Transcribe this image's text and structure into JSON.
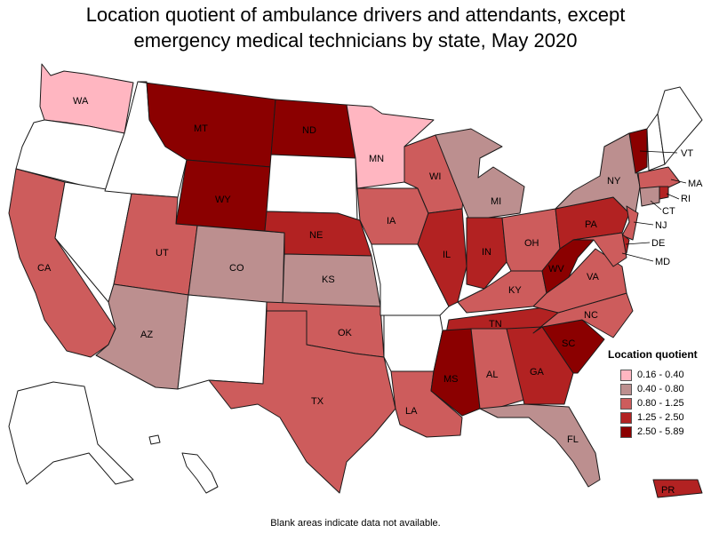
{
  "title_line1": "Location quotient of ambulance drivers and attendants, except",
  "title_line2": "emergency medical technicians by state, May 2020",
  "legend": {
    "title": "Location quotient",
    "items": [
      {
        "label": "0.16 - 0.40",
        "color": "#ffb6c1"
      },
      {
        "label": "0.40 - 0.80",
        "color": "#bc8f8f"
      },
      {
        "label": "0.80 - 1.25",
        "color": "#cd5c5c"
      },
      {
        "label": "1.25 - 2.50",
        "color": "#b22222"
      },
      {
        "label": "2.50 - 5.89",
        "color": "#8b0000"
      }
    ]
  },
  "no_data_color": "#ffffff",
  "footnote": "Blank areas indicate data not available.",
  "states": {
    "WA": {
      "label": "WA",
      "class": 0
    },
    "OR": {
      "label": "",
      "class": -1
    },
    "CA": {
      "label": "CA",
      "class": 2
    },
    "ID": {
      "label": "",
      "class": -1
    },
    "NV": {
      "label": "",
      "class": -1
    },
    "MT": {
      "label": "MT",
      "class": 4
    },
    "WY": {
      "label": "WY",
      "class": 4
    },
    "UT": {
      "label": "UT",
      "class": 2
    },
    "AZ": {
      "label": "AZ",
      "class": 1
    },
    "CO": {
      "label": "CO",
      "class": 1
    },
    "NM": {
      "label": "",
      "class": -1
    },
    "ND": {
      "label": "ND",
      "class": 4
    },
    "SD": {
      "label": "",
      "class": -1
    },
    "NE": {
      "label": "NE",
      "class": 3
    },
    "KS": {
      "label": "KS",
      "class": 1
    },
    "OK": {
      "label": "OK",
      "class": 2
    },
    "TX": {
      "label": "TX",
      "class": 2
    },
    "MN": {
      "label": "MN",
      "class": 0
    },
    "IA": {
      "label": "IA",
      "class": 2
    },
    "MO": {
      "label": "",
      "class": -1
    },
    "AR": {
      "label": "",
      "class": -1
    },
    "LA": {
      "label": "LA",
      "class": 2
    },
    "WI": {
      "label": "WI",
      "class": 2
    },
    "IL": {
      "label": "IL",
      "class": 3
    },
    "MI": {
      "label": "MI",
      "class": 1
    },
    "IN": {
      "label": "IN",
      "class": 3
    },
    "OH": {
      "label": "OH",
      "class": 2
    },
    "KY": {
      "label": "KY",
      "class": 2
    },
    "TN": {
      "label": "TN",
      "class": 3
    },
    "MS": {
      "label": "MS",
      "class": 4
    },
    "AL": {
      "label": "AL",
      "class": 2
    },
    "GA": {
      "label": "GA",
      "class": 3
    },
    "FL": {
      "label": "FL",
      "class": 1
    },
    "SC": {
      "label": "SC",
      "class": 4
    },
    "NC": {
      "label": "NC",
      "class": 2
    },
    "VA": {
      "label": "VA",
      "class": 2
    },
    "WV": {
      "label": "WV",
      "class": 4
    },
    "PA": {
      "label": "PA",
      "class": 3
    },
    "NY": {
      "label": "NY",
      "class": 1
    },
    "VT": {
      "label": "VT",
      "class": 4
    },
    "NH": {
      "label": "NH",
      "class": -1
    },
    "ME": {
      "label": "",
      "class": -1
    },
    "MA": {
      "label": "MA",
      "class": 2
    },
    "RI": {
      "label": "RI",
      "class": 3
    },
    "CT": {
      "label": "CT",
      "class": 1
    },
    "NJ": {
      "label": "NJ",
      "class": 2
    },
    "DE": {
      "label": "DE",
      "class": 3
    },
    "MD": {
      "label": "MD",
      "class": 2
    },
    "AK": {
      "label": "",
      "class": -1
    },
    "HI": {
      "label": "",
      "class": -1
    },
    "PR": {
      "label": "PR",
      "class": 3
    }
  }
}
